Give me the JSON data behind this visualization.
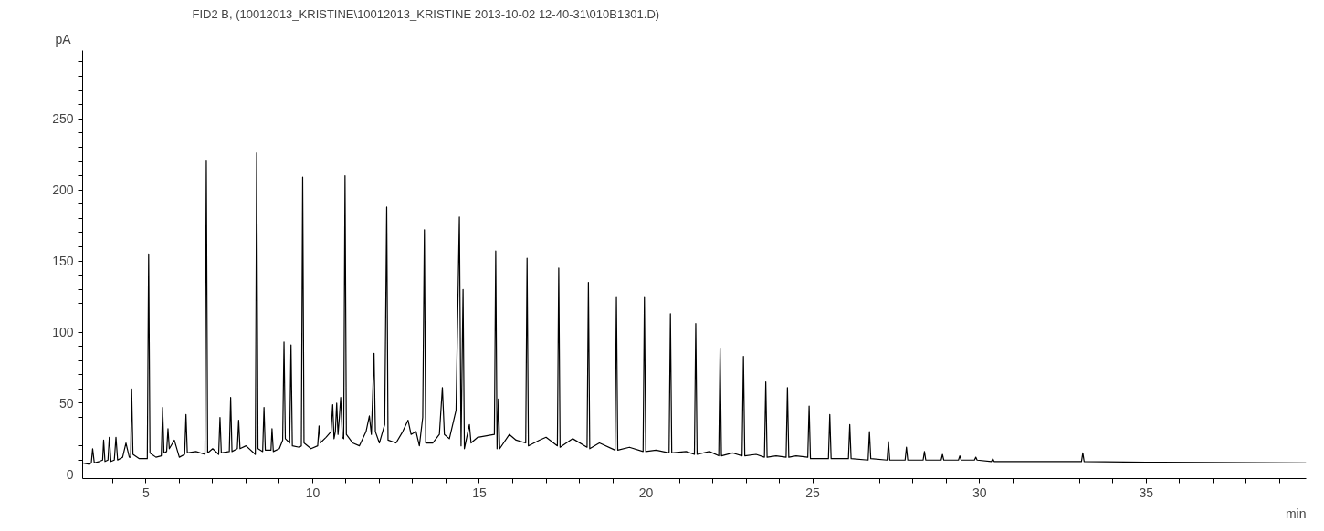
{
  "chart_data": {
    "type": "line",
    "title": "FID2 B, (10012013_KRISTINE\\10012013_KRISTINE 2013-10-02 12-40-31\\010B1301.D)",
    "xlabel": "min",
    "ylabel": "pA",
    "xlim": [
      3.1,
      39.8
    ],
    "ylim": [
      -3,
      298
    ],
    "xticks": [
      {
        "value": 4,
        "label": null
      },
      5,
      {
        "value": 6,
        "label": null
      },
      {
        "value": 7,
        "label": null
      },
      {
        "value": 8,
        "label": null
      },
      {
        "value": 9,
        "label": null
      },
      10,
      {
        "value": 11,
        "label": null
      },
      {
        "value": 12,
        "label": null
      },
      {
        "value": 13,
        "label": null
      },
      {
        "value": 14,
        "label": null
      },
      15,
      {
        "value": 16,
        "label": null
      },
      {
        "value": 17,
        "label": null
      },
      {
        "value": 18,
        "label": null
      },
      {
        "value": 19,
        "label": null
      },
      20,
      {
        "value": 21,
        "label": null
      },
      {
        "value": 22,
        "label": null
      },
      {
        "value": 23,
        "label": null
      },
      {
        "value": 24,
        "label": null
      },
      25,
      {
        "value": 26,
        "label": null
      },
      {
        "value": 27,
        "label": null
      },
      {
        "value": 28,
        "label": null
      },
      {
        "value": 29,
        "label": null
      },
      30,
      {
        "value": 31,
        "label": null
      },
      {
        "value": 32,
        "label": null
      },
      {
        "value": 33,
        "label": null
      },
      {
        "value": 34,
        "label": null
      },
      35,
      {
        "value": 36,
        "label": null
      },
      {
        "value": 37,
        "label": null
      },
      {
        "value": 38,
        "label": null
      },
      {
        "value": 39,
        "label": null
      }
    ],
    "yticks": [
      0,
      {
        "value": 10,
        "label": null
      },
      {
        "value": 20,
        "label": null
      },
      {
        "value": 30,
        "label": null
      },
      {
        "value": 40,
        "label": null
      },
      50,
      {
        "value": 60,
        "label": null
      },
      {
        "value": 70,
        "label": null
      },
      {
        "value": 80,
        "label": null
      },
      {
        "value": 90,
        "label": null
      },
      100,
      {
        "value": 110,
        "label": null
      },
      {
        "value": 120,
        "label": null
      },
      {
        "value": 130,
        "label": null
      },
      {
        "value": 140,
        "label": null
      },
      150,
      {
        "value": 160,
        "label": null
      },
      {
        "value": 170,
        "label": null
      },
      {
        "value": 180,
        "label": null
      },
      {
        "value": 190,
        "label": null
      },
      200,
      {
        "value": 210,
        "label": null
      },
      {
        "value": 220,
        "label": null
      },
      {
        "value": 230,
        "label": null
      },
      {
        "value": 240,
        "label": null
      },
      250,
      {
        "value": 260,
        "label": null
      },
      {
        "value": 270,
        "label": null
      },
      {
        "value": 280,
        "label": null
      },
      {
        "value": 290,
        "label": null
      }
    ],
    "grid": false,
    "marker": "none",
    "line_style": "solid",
    "series": [
      {
        "color": "#000000",
        "x": [
          3.1,
          3.3,
          3.36,
          3.4,
          3.45,
          3.6,
          3.7,
          3.73,
          3.77,
          3.86,
          3.9,
          3.95,
          4.05,
          4.1,
          4.15,
          4.3,
          4.4,
          4.5,
          4.54,
          4.57,
          4.61,
          4.8,
          5.04,
          5.08,
          5.12,
          5.3,
          5.46,
          5.5,
          5.54,
          5.62,
          5.66,
          5.7,
          5.85,
          6.0,
          6.16,
          6.2,
          6.24,
          6.5,
          6.77,
          6.81,
          6.85,
          7.0,
          7.18,
          7.22,
          7.26,
          7.5,
          7.54,
          7.58,
          7.74,
          7.78,
          7.82,
          8.0,
          8.28,
          8.32,
          8.36,
          8.5,
          8.54,
          8.58,
          8.75,
          8.78,
          8.82,
          9.0,
          9.1,
          9.14,
          9.18,
          9.31,
          9.35,
          9.39,
          9.6,
          9.66,
          9.7,
          9.74,
          9.95,
          10.15,
          10.19,
          10.23,
          10.4,
          10.55,
          10.6,
          10.64,
          10.68,
          10.72,
          10.76,
          10.8,
          10.84,
          10.89,
          10.93,
          10.97,
          11.01,
          11.2,
          11.4,
          11.6,
          11.7,
          11.76,
          11.84,
          11.88,
          12.0,
          12.16,
          12.22,
          12.26,
          12.5,
          12.7,
          12.86,
          12.95,
          13.1,
          13.2,
          13.3,
          13.35,
          13.39,
          13.6,
          13.8,
          13.89,
          13.95,
          14.1,
          14.3,
          14.4,
          14.45,
          14.51,
          14.55,
          14.7,
          14.75,
          14.95,
          15.45,
          15.49,
          15.53,
          15.57,
          15.61,
          15.9,
          16.1,
          16.39,
          16.43,
          16.47,
          16.8,
          17.0,
          17.34,
          17.38,
          17.42,
          17.8,
          18.23,
          18.27,
          18.31,
          18.6,
          19.07,
          19.11,
          19.15,
          19.5,
          19.91,
          19.95,
          19.99,
          20.3,
          20.69,
          20.73,
          20.77,
          21.2,
          21.45,
          21.49,
          21.53,
          21.9,
          22.18,
          22.22,
          22.26,
          22.6,
          22.88,
          22.92,
          22.96,
          23.3,
          23.55,
          23.59,
          23.63,
          23.9,
          24.2,
          24.24,
          24.28,
          24.5,
          24.85,
          24.89,
          24.93,
          25.47,
          25.51,
          25.55,
          26.07,
          26.11,
          26.15,
          26.66,
          26.7,
          26.74,
          27.23,
          27.27,
          27.31,
          27.77,
          27.81,
          27.85,
          28.31,
          28.35,
          28.39,
          28.85,
          28.89,
          28.93,
          29.37,
          29.41,
          29.45,
          29.85,
          29.89,
          29.93,
          30.36,
          30.4,
          30.44,
          31.0,
          32.5,
          33.06,
          33.1,
          33.14,
          35.0,
          39.8
        ],
        "values": [
          8,
          7,
          8,
          18,
          8,
          9,
          10,
          24,
          9,
          10,
          26,
          9,
          10,
          26,
          10,
          12,
          22,
          12,
          12,
          60,
          14,
          11,
          11,
          155,
          15,
          12,
          13,
          47,
          15,
          16,
          32,
          18,
          24,
          12,
          14,
          42,
          15,
          16,
          14,
          221,
          15,
          18,
          14,
          40,
          15,
          16,
          54,
          16,
          18,
          38,
          18,
          20,
          14,
          226,
          18,
          16,
          47,
          17,
          17,
          32,
          16,
          18,
          24,
          93,
          25,
          22,
          91,
          20,
          19,
          20,
          209,
          22,
          18,
          20,
          34,
          22,
          26,
          30,
          49,
          25,
          30,
          50,
          28,
          40,
          54,
          26,
          25,
          210,
          28,
          22,
          20,
          30,
          41,
          28,
          85,
          30,
          22,
          35,
          188,
          24,
          22,
          30,
          38,
          28,
          30,
          20,
          40,
          172,
          22,
          22,
          28,
          61,
          28,
          25,
          45,
          181,
          20,
          130,
          18,
          35,
          22,
          26,
          28,
          157,
          18,
          53,
          18,
          28,
          24,
          22,
          152,
          20,
          24,
          26,
          20,
          145,
          19,
          25,
          19,
          135,
          18,
          22,
          17,
          125,
          17,
          19,
          16,
          125,
          16,
          17,
          15,
          113,
          15,
          16,
          14,
          106,
          14,
          16,
          13,
          89,
          13,
          15,
          13,
          83,
          13,
          14,
          12,
          65,
          12,
          13,
          12,
          61,
          12,
          13,
          12,
          48,
          11,
          11,
          42,
          11,
          11,
          35,
          11,
          10,
          30,
          11,
          10,
          23,
          10,
          10,
          19,
          10,
          10,
          16,
          10,
          10,
          14,
          10,
          10,
          13,
          10,
          10,
          12,
          10,
          9,
          11,
          9,
          9,
          9,
          9,
          15,
          9,
          8.5,
          8
        ]
      }
    ]
  }
}
